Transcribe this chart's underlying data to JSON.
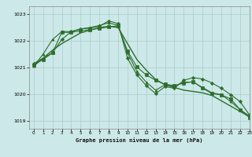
{
  "title": "Graphe pression niveau de la mer (hPa)",
  "bg_color": "#cce8e8",
  "grid_color": "#aacccc",
  "line_color": "#2d6e2d",
  "xlim": [
    -0.5,
    23
  ],
  "ylim": [
    1018.7,
    1023.3
  ],
  "yticks": [
    1019,
    1020,
    1021,
    1022,
    1023
  ],
  "xticks": [
    0,
    1,
    2,
    3,
    4,
    5,
    6,
    7,
    8,
    9,
    10,
    11,
    12,
    13,
    14,
    15,
    16,
    17,
    18,
    19,
    20,
    21,
    22,
    23
  ],
  "series": [
    {
      "x": [
        0,
        1,
        2,
        3,
        4,
        5,
        6,
        7,
        8,
        9,
        10,
        11,
        12,
        13,
        14,
        15,
        16,
        17,
        18,
        19,
        20,
        21,
        22,
        23
      ],
      "y": [
        1021.05,
        1021.35,
        1021.65,
        1021.9,
        1022.1,
        1022.3,
        1022.4,
        1022.5,
        1022.55,
        1022.5,
        1021.9,
        1021.3,
        1020.9,
        1020.55,
        1020.35,
        1020.25,
        1020.15,
        1020.1,
        1020.05,
        1019.95,
        1019.75,
        1019.55,
        1019.35,
        1019.15
      ],
      "marker": null,
      "lw": 1.0
    },
    {
      "x": [
        0,
        1,
        2,
        3,
        4,
        5,
        6,
        7,
        8,
        9,
        10,
        11,
        12,
        13,
        14,
        15,
        16,
        17,
        18,
        19,
        20,
        21,
        22,
        23
      ],
      "y": [
        1021.05,
        1021.5,
        1022.05,
        1022.35,
        1022.35,
        1022.45,
        1022.5,
        1022.58,
        1022.68,
        1022.58,
        1021.55,
        1020.85,
        1020.45,
        1020.15,
        1020.35,
        1020.3,
        1020.45,
        1020.45,
        1020.25,
        1020.05,
        1019.98,
        1019.72,
        1019.42,
        1019.18
      ],
      "marker": "^",
      "lw": 0.8
    },
    {
      "x": [
        0,
        2,
        3,
        4,
        5,
        6,
        7,
        8,
        9,
        10,
        11,
        12,
        13,
        14,
        15,
        16,
        17,
        18,
        19,
        20,
        21,
        22,
        23
      ],
      "y": [
        1021.15,
        1021.55,
        1022.05,
        1022.35,
        1022.45,
        1022.48,
        1022.55,
        1022.75,
        1022.65,
        1021.35,
        1020.72,
        1020.32,
        1020.02,
        1020.28,
        1020.22,
        1020.52,
        1020.62,
        1020.57,
        1020.42,
        1020.22,
        1019.98,
        1019.72,
        1019.22
      ],
      "marker": "D",
      "lw": 0.8
    },
    {
      "x": [
        0,
        1,
        2,
        3,
        4,
        5,
        6,
        7,
        8,
        9,
        10,
        11,
        12,
        13,
        14,
        15,
        16,
        17,
        18,
        19,
        20,
        21,
        22,
        23
      ],
      "y": [
        1021.1,
        1021.3,
        1021.55,
        1022.32,
        1022.32,
        1022.38,
        1022.42,
        1022.47,
        1022.52,
        1022.57,
        1021.62,
        1021.02,
        1020.72,
        1020.52,
        1020.37,
        1020.32,
        1020.42,
        1020.47,
        1020.22,
        1020.02,
        1019.97,
        1019.82,
        1019.42,
        1019.12
      ],
      "marker": "s",
      "lw": 0.8
    }
  ]
}
